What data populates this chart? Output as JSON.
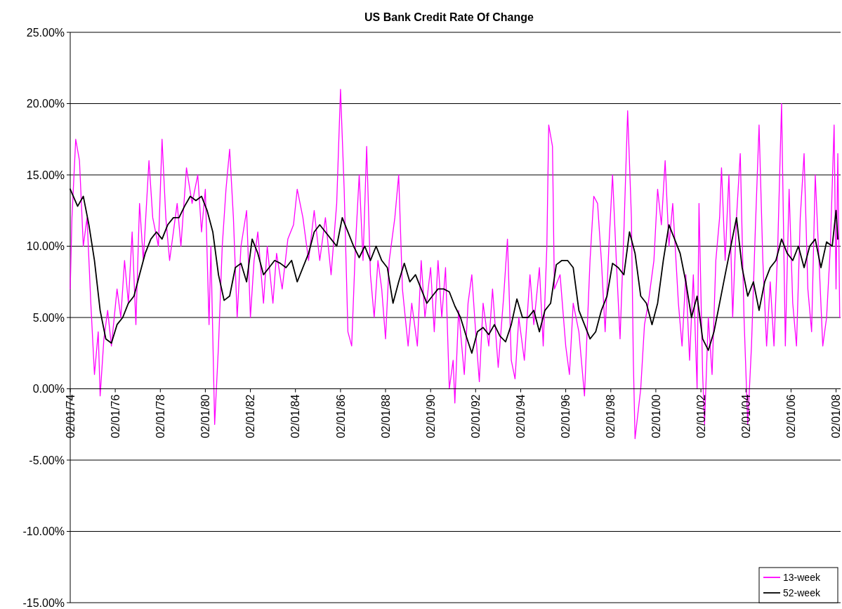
{
  "chart_data": {
    "type": "line",
    "title": "US Bank Credit Rate Of Change",
    "xlim": [
      "1974-02-01",
      "2008-04-15"
    ],
    "xticks": [
      {
        "value": "1974-02-01",
        "label": "02/01/74"
      },
      {
        "value": "1976-02-01",
        "label": "02/01/76"
      },
      {
        "value": "1978-02-01",
        "label": "02/01/78"
      },
      {
        "value": "1980-02-01",
        "label": "02/01/80"
      },
      {
        "value": "1982-02-01",
        "label": "02/01/82"
      },
      {
        "value": "1984-02-01",
        "label": "02/01/84"
      },
      {
        "value": "1986-02-01",
        "label": "02/01/86"
      },
      {
        "value": "1988-02-01",
        "label": "02/01/88"
      },
      {
        "value": "1990-02-01",
        "label": "02/01/90"
      },
      {
        "value": "1992-02-01",
        "label": "02/01/92"
      },
      {
        "value": "1994-02-01",
        "label": "02/01/94"
      },
      {
        "value": "1996-02-01",
        "label": "02/01/96"
      },
      {
        "value": "1998-02-01",
        "label": "02/01/98"
      },
      {
        "value": "2000-02-01",
        "label": "02/01/00"
      },
      {
        "value": "2002-02-01",
        "label": "02/01/02"
      },
      {
        "value": "2004-02-01",
        "label": "02/01/04"
      },
      {
        "value": "2006-02-01",
        "label": "02/01/06"
      },
      {
        "value": "2008-02-01",
        "label": "02/01/08"
      }
    ],
    "ylim": [
      -15,
      25
    ],
    "yticks": [
      {
        "value": -15,
        "label": "-15.00%"
      },
      {
        "value": -10,
        "label": "-10.00%"
      },
      {
        "value": -5,
        "label": "-5.00%"
      },
      {
        "value": 0,
        "label": "0.00%"
      },
      {
        "value": 5,
        "label": "5.00%"
      },
      {
        "value": 10,
        "label": "10.00%"
      },
      {
        "value": 15,
        "label": "15.00%"
      },
      {
        "value": 20,
        "label": "20.00%"
      },
      {
        "value": 25,
        "label": "25.00%"
      }
    ],
    "grid": "y",
    "legend": "bottom right",
    "marker": "none",
    "line_style": "solid",
    "series": [
      {
        "name": "13-week",
        "color": "#ff00ff",
        "x": [
          "1974-02",
          "1974-03",
          "1974-05",
          "1974-07",
          "1974-09",
          "1974-11",
          "1975-01",
          "1975-03",
          "1975-05",
          "1975-06",
          "1975-08",
          "1975-10",
          "1975-12",
          "1976-03",
          "1976-05",
          "1976-07",
          "1976-09",
          "1976-11",
          "1977-01",
          "1977-03",
          "1977-05",
          "1977-08",
          "1977-10",
          "1978-01",
          "1978-03",
          "1978-05",
          "1978-07",
          "1978-09",
          "1978-11",
          "1979-01",
          "1979-04",
          "1979-07",
          "1979-10",
          "1979-12",
          "1980-02",
          "1980-04",
          "1980-05",
          "1980-07",
          "1980-09",
          "1980-11",
          "1981-01",
          "1981-03",
          "1981-05",
          "1981-07",
          "1981-09",
          "1981-12",
          "1982-02",
          "1982-04",
          "1982-06",
          "1982-09",
          "1982-11",
          "1983-02",
          "1983-04",
          "1983-07",
          "1983-10",
          "1984-01",
          "1984-03",
          "1984-06",
          "1984-09",
          "1984-12",
          "1985-03",
          "1985-06",
          "1985-09",
          "1985-12",
          "1986-02",
          "1986-04",
          "1986-06",
          "1986-08",
          "1986-10",
          "1986-12",
          "1987-02",
          "1987-04",
          "1987-06",
          "1987-08",
          "1987-10",
          "1987-12",
          "1988-02",
          "1988-04",
          "1988-07",
          "1988-09",
          "1988-11",
          "1989-02",
          "1989-04",
          "1989-07",
          "1989-09",
          "1989-11",
          "1990-02",
          "1990-04",
          "1990-06",
          "1990-08",
          "1990-10",
          "1990-12",
          "1991-02",
          "1991-03",
          "1991-05",
          "1991-08",
          "1991-10",
          "1991-12",
          "1992-02",
          "1992-04",
          "1992-06",
          "1992-09",
          "1992-11",
          "1993-02",
          "1993-05",
          "1993-07",
          "1993-09",
          "1993-11",
          "1994-01",
          "1994-04",
          "1994-07",
          "1994-09",
          "1994-12",
          "1995-02",
          "1995-04",
          "1995-05",
          "1995-07",
          "1995-08",
          "1995-11",
          "1996-02",
          "1996-04",
          "1996-06",
          "1996-09",
          "1996-11",
          "1996-12",
          "1997-03",
          "1997-05",
          "1997-07",
          "1997-09",
          "1997-11",
          "1998-01",
          "1998-03",
          "1998-05",
          "1998-07",
          "1998-09",
          "1998-11",
          "1999-01",
          "1999-02",
          "1999-03",
          "1999-06",
          "1999-08",
          "1999-10",
          "2000-01",
          "2000-03",
          "2000-05",
          "2000-07",
          "2000-09",
          "2000-11",
          "2001-02",
          "2001-04",
          "2001-06",
          "2001-08",
          "2001-10",
          "2001-12",
          "2002-01",
          "2002-03",
          "2002-04",
          "2002-06",
          "2002-08",
          "2002-10",
          "2002-12",
          "2003-01",
          "2003-03",
          "2003-05",
          "2003-07",
          "2003-09",
          "2003-11",
          "2004-01",
          "2004-03",
          "2004-05",
          "2004-07",
          "2004-09",
          "2004-11",
          "2005-01",
          "2005-03",
          "2005-05",
          "2005-07",
          "2005-09",
          "2005-11",
          "2006-01",
          "2006-03",
          "2006-05",
          "2006-07",
          "2006-09",
          "2006-11",
          "2007-01",
          "2007-03",
          "2007-05",
          "2007-07",
          "2007-09",
          "2007-11",
          "2008-01",
          "2008-02",
          "2008-03",
          "2008-04"
        ],
        "values": [
          7,
          12,
          17.5,
          16,
          10,
          12,
          6,
          1,
          4,
          -0.5,
          3.5,
          5.5,
          3,
          7,
          5,
          9,
          6,
          11,
          4.5,
          13,
          9,
          16,
          12,
          10,
          17.5,
          12,
          9,
          11,
          13,
          10,
          15.5,
          13,
          15,
          11,
          14,
          4.5,
          10,
          -2.5,
          3,
          10,
          14,
          16.8,
          12,
          5,
          10,
          12.5,
          5,
          9,
          11,
          6,
          10,
          6,
          9.5,
          7,
          10.5,
          11.5,
          14,
          12,
          9,
          12.5,
          9,
          12,
          8,
          13,
          21,
          14,
          4,
          3,
          10,
          15,
          9,
          17,
          8,
          5,
          9,
          7,
          3.5,
          9,
          12,
          15,
          7,
          3,
          6,
          3,
          9,
          5,
          8.5,
          4,
          9,
          5,
          8.5,
          0,
          2,
          -1,
          5.5,
          1,
          6,
          8,
          4,
          0.5,
          6,
          3,
          7,
          1.5,
          6.5,
          10.5,
          2,
          0.7,
          5,
          2,
          8,
          4.5,
          8.5,
          3,
          10,
          18.5,
          17,
          7,
          8,
          3,
          1,
          6,
          4,
          1,
          -0.5,
          9,
          13.5,
          13,
          9,
          4,
          10,
          15,
          9,
          3.5,
          11,
          19.5,
          12,
          2,
          -3.5,
          0,
          4.5,
          6,
          9,
          14,
          11.5,
          16,
          10,
          13,
          6,
          3,
          8,
          2,
          8,
          0,
          13,
          1,
          -2.5,
          5,
          1,
          9,
          12,
          15.5,
          9,
          15,
          5,
          12,
          16.5,
          5,
          -2.5,
          3,
          11,
          18.5,
          9,
          3,
          7.5,
          3,
          10,
          20,
          3,
          14,
          6,
          3,
          12,
          16.5,
          7,
          4,
          15,
          9,
          3,
          5,
          10,
          18.5,
          7,
          16.5,
          5
        ]
      },
      {
        "name": "52-week",
        "color": "#000000",
        "x": [
          "1974-02",
          "1974-06",
          "1974-09",
          "1974-12",
          "1975-03",
          "1975-06",
          "1975-09",
          "1975-12",
          "1976-03",
          "1976-06",
          "1976-09",
          "1976-12",
          "1977-03",
          "1977-06",
          "1977-09",
          "1977-12",
          "1978-03",
          "1978-06",
          "1978-09",
          "1978-12",
          "1979-03",
          "1979-06",
          "1979-09",
          "1979-12",
          "1980-03",
          "1980-06",
          "1980-09",
          "1980-12",
          "1981-03",
          "1981-06",
          "1981-09",
          "1981-12",
          "1982-03",
          "1982-06",
          "1982-09",
          "1982-12",
          "1983-03",
          "1983-06",
          "1983-09",
          "1983-12",
          "1984-03",
          "1984-06",
          "1984-09",
          "1984-12",
          "1985-03",
          "1985-06",
          "1985-09",
          "1985-12",
          "1986-03",
          "1986-06",
          "1986-09",
          "1986-12",
          "1987-03",
          "1987-06",
          "1987-09",
          "1987-12",
          "1988-03",
          "1988-06",
          "1988-09",
          "1988-12",
          "1989-03",
          "1989-06",
          "1989-09",
          "1989-12",
          "1990-03",
          "1990-06",
          "1990-09",
          "1990-12",
          "1991-03",
          "1991-06",
          "1991-09",
          "1991-12",
          "1992-03",
          "1992-06",
          "1992-09",
          "1992-12",
          "1993-03",
          "1993-06",
          "1993-09",
          "1993-12",
          "1994-03",
          "1994-06",
          "1994-09",
          "1994-12",
          "1995-03",
          "1995-06",
          "1995-09",
          "1995-12",
          "1996-03",
          "1996-06",
          "1996-09",
          "1996-12",
          "1997-03",
          "1997-06",
          "1997-09",
          "1997-12",
          "1998-03",
          "1998-06",
          "1998-09",
          "1998-12",
          "1999-03",
          "1999-06",
          "1999-09",
          "1999-12",
          "2000-03",
          "2000-06",
          "2000-09",
          "2000-12",
          "2001-03",
          "2001-06",
          "2001-09",
          "2001-12",
          "2002-03",
          "2002-06",
          "2002-09",
          "2002-12",
          "2003-03",
          "2003-06",
          "2003-09",
          "2003-12",
          "2004-03",
          "2004-06",
          "2004-09",
          "2004-12",
          "2005-03",
          "2005-06",
          "2005-09",
          "2005-12",
          "2006-03",
          "2006-06",
          "2006-09",
          "2006-12",
          "2007-03",
          "2007-06",
          "2007-09",
          "2007-12",
          "2008-02",
          "2008-03"
        ],
        "values": [
          14,
          12.8,
          13.5,
          11.5,
          9,
          5.5,
          3.5,
          3.2,
          4.5,
          5,
          6,
          6.5,
          8,
          9.5,
          10.5,
          11,
          10.5,
          11.5,
          12,
          12,
          12.8,
          13.5,
          13.2,
          13.5,
          12.5,
          11,
          8,
          6.2,
          6.5,
          8.5,
          8.8,
          7.5,
          10.5,
          9.5,
          8,
          8.5,
          9,
          8.8,
          8.5,
          9,
          7.5,
          8.5,
          9.5,
          11,
          11.5,
          11,
          10.5,
          10,
          12,
          11,
          10,
          9.2,
          10,
          9,
          10,
          9,
          8.5,
          6,
          7.5,
          8.8,
          7.5,
          8,
          7,
          6,
          6.5,
          7,
          7,
          6.8,
          5.8,
          5,
          3.7,
          2.5,
          4,
          4.3,
          3.8,
          4.5,
          3.7,
          3.3,
          4.5,
          6.3,
          5,
          5,
          5.5,
          4,
          5.5,
          6,
          8.7,
          9,
          9,
          8.5,
          5.5,
          4.5,
          3.5,
          4,
          5.5,
          6.5,
          8.8,
          8.5,
          8,
          11,
          9.5,
          6.5,
          6,
          4.5,
          6,
          9,
          11.5,
          10.5,
          9.5,
          7.5,
          5,
          6.5,
          3.5,
          2.7,
          4,
          6,
          8,
          10,
          12,
          8.5,
          6.5,
          7.5,
          5.5,
          7.5,
          8.5,
          9,
          10.5,
          9.5,
          9,
          10,
          8.5,
          10,
          10.5,
          8.5,
          10.3,
          10,
          12.5,
          10.5
        ]
      }
    ]
  }
}
